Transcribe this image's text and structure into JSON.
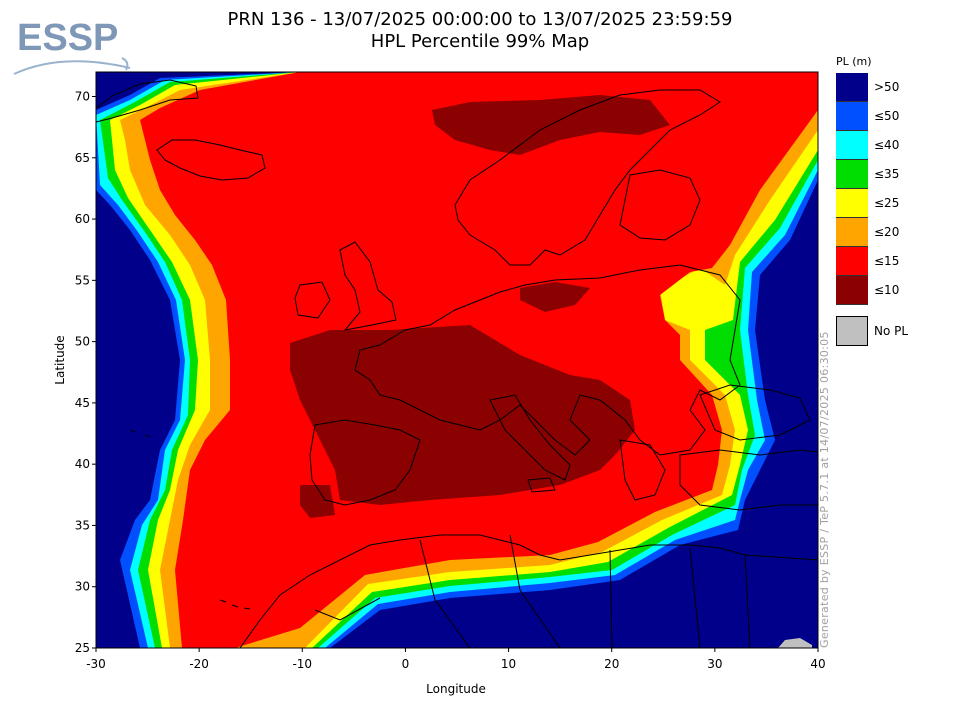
{
  "header": {
    "logo_text": "ESSP",
    "title_line1": "PRN 136 - 13/07/2025 00:00:00 to 13/07/2025 23:59:59",
    "title_line2": "HPL Percentile 99% Map"
  },
  "map": {
    "x_axis_label": "Longitude",
    "y_axis_label": "Latitude",
    "lon_range": [
      -30,
      40
    ],
    "lat_range": [
      25,
      72
    ],
    "x_ticks": [
      -30,
      -20,
      -10,
      0,
      10,
      20,
      30,
      40
    ],
    "y_ticks": [
      25,
      30,
      35,
      40,
      45,
      50,
      55,
      60,
      65,
      70
    ],
    "coastlines": "drawn"
  },
  "legend": {
    "title": "PL (m)",
    "items": [
      {
        "label": ">50",
        "color": "#00008b"
      },
      {
        "label": "≤50",
        "color": "#0050ff"
      },
      {
        "label": "≤40",
        "color": "#00ffff"
      },
      {
        "label": "≤35",
        "color": "#00dd00"
      },
      {
        "label": "≤25",
        "color": "#ffff00"
      },
      {
        "label": "≤20",
        "color": "#ffa500"
      },
      {
        "label": "≤15",
        "color": "#ff0000"
      },
      {
        "label": "≤10",
        "color": "#8b0000"
      }
    ],
    "no_pl_label": "No PL",
    "no_pl_color": "#c0c0c0"
  },
  "footer": {
    "credit": "Generated by ESSP / TeP 5.7.1 at 14/07/2025 06:30:05"
  }
}
